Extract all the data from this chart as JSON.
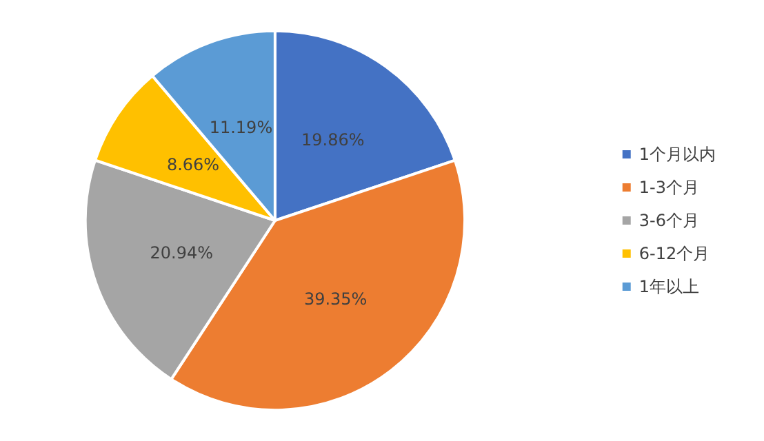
{
  "chart_data": {
    "type": "pie",
    "categories": [
      "1个月以内",
      "1-3个月",
      "3-6个月",
      "6-12个月",
      "1年以上"
    ],
    "values": [
      19.86,
      39.35,
      20.94,
      8.66,
      11.19
    ],
    "colors": [
      "#4472c4",
      "#ed7d31",
      "#a5a5a5",
      "#ffc000",
      "#5b9bd5"
    ],
    "value_labels": [
      "19.86%",
      "39.35%",
      "20.94%",
      "8.66%",
      "11.19%"
    ],
    "legend": "right"
  }
}
